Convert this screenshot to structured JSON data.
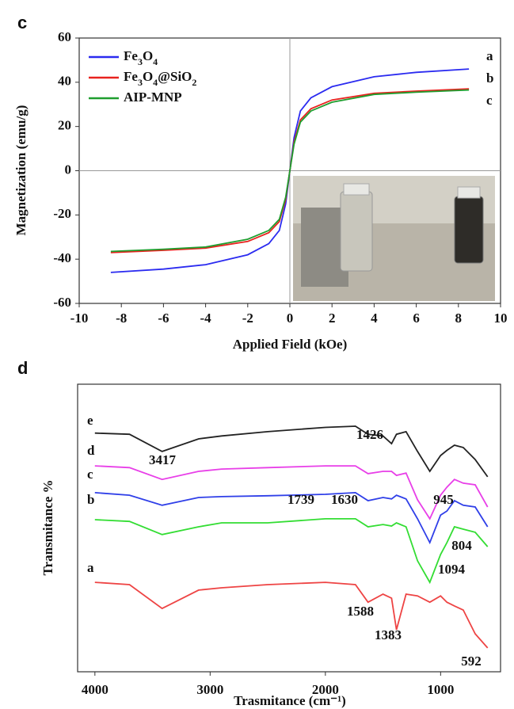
{
  "chart_data": [
    {
      "type": "line",
      "panel": "c",
      "xlabel": "Applied Field (kOe)",
      "ylabel": "Magnetization (emu/g)",
      "x": [
        -8.5,
        -6,
        -4,
        -2,
        -1,
        -0.5,
        -0.2,
        0,
        0.2,
        0.5,
        1,
        2,
        4,
        6,
        8.5
      ],
      "series": [
        {
          "name": "Fe3O4",
          "tag": "a",
          "color": "#2b2bf0",
          "values": [
            -46,
            -44.5,
            -42.5,
            -38,
            -33,
            -27,
            -15,
            0,
            15,
            27,
            33,
            38,
            42.5,
            44.5,
            46
          ]
        },
        {
          "name": "Fe3O4@SiO2",
          "tag": "b",
          "color": "#e8231f",
          "values": [
            -37,
            -36,
            -35,
            -32,
            -28,
            -23,
            -13,
            0,
            13,
            23,
            28,
            32,
            35,
            36,
            37
          ]
        },
        {
          "name": "AIP-MNP",
          "tag": "c",
          "color": "#1f9e2f",
          "values": [
            -36.5,
            -35.5,
            -34.5,
            -31,
            -27,
            -22,
            -12,
            0,
            12,
            22,
            27,
            31,
            34.5,
            35.5,
            36.5
          ]
        }
      ],
      "xlim": [
        -10,
        10
      ],
      "xticks": [
        -10,
        -8,
        -6,
        -4,
        -2,
        0,
        2,
        4,
        6,
        8,
        10
      ],
      "ylim": [
        -60,
        60
      ],
      "yticks": [
        -60,
        -40,
        -20,
        0,
        20,
        40,
        60
      ],
      "legend": "upper-left"
    },
    {
      "type": "line",
      "panel": "d",
      "xlabel": "Trasmitance (cm⁻¹)",
      "ylabel": "Transmitance %",
      "x": [
        4000,
        3700,
        3417,
        3100,
        2900,
        2500,
        2000,
        1739,
        1630,
        1500,
        1426,
        1383,
        1300,
        1200,
        1094,
        1000,
        945,
        880,
        804,
        700,
        592
      ],
      "series": [
        {
          "name": "e",
          "color": "#222222",
          "values": [
            83,
            82.6,
            76.6,
            81,
            82,
            83.5,
            85,
            85.4,
            82.6,
            82,
            79.3,
            82.6,
            83.5,
            76.6,
            69.7,
            75.2,
            77,
            78.8,
            78,
            73.8,
            67.8
          ]
        },
        {
          "name": "d",
          "color": "#e83fe8",
          "values": [
            71.6,
            71,
            66.9,
            69.7,
            70.5,
            71,
            71.6,
            71.6,
            68.9,
            69.7,
            69.7,
            68.3,
            69.1,
            59.8,
            53.2,
            61.4,
            64.2,
            66.9,
            65.6,
            65,
            57.3
          ]
        },
        {
          "name": "c",
          "color": "#2f3fe8",
          "values": [
            62.3,
            61.4,
            57.9,
            60.6,
            60.9,
            61.2,
            61.7,
            62.3,
            59.5,
            60.6,
            60.1,
            61.4,
            60.1,
            53.2,
            44.9,
            54.5,
            55.9,
            59.5,
            57.9,
            57.3,
            50.4
          ]
        },
        {
          "name": "b",
          "color": "#33dd33",
          "values": [
            52.9,
            52.3,
            47.7,
            50.4,
            51.8,
            51.8,
            53.2,
            53.2,
            50.4,
            51.2,
            50.7,
            51.8,
            50.4,
            38.6,
            31.1,
            40.8,
            44.9,
            50.4,
            49.6,
            48.5,
            43.5
          ]
        },
        {
          "name": "a",
          "color": "#ee4444",
          "values": [
            31.1,
            30.3,
            22,
            28.4,
            29.2,
            30.3,
            31.1,
            30.3,
            24.2,
            27,
            25.6,
            14.6,
            27,
            26.4,
            24.2,
            26.4,
            24.2,
            22.9,
            21.5,
            13.2,
            8.3
          ]
        }
      ],
      "annotations": [
        "3417",
        "1426",
        "1739",
        "1630",
        "945",
        "804",
        "1094",
        "1588",
        "1383",
        "592"
      ],
      "xlim": [
        4150,
        480
      ],
      "xticks": [
        4000,
        3000,
        2000,
        1000
      ],
      "ylim": [
        0,
        100
      ]
    }
  ]
}
